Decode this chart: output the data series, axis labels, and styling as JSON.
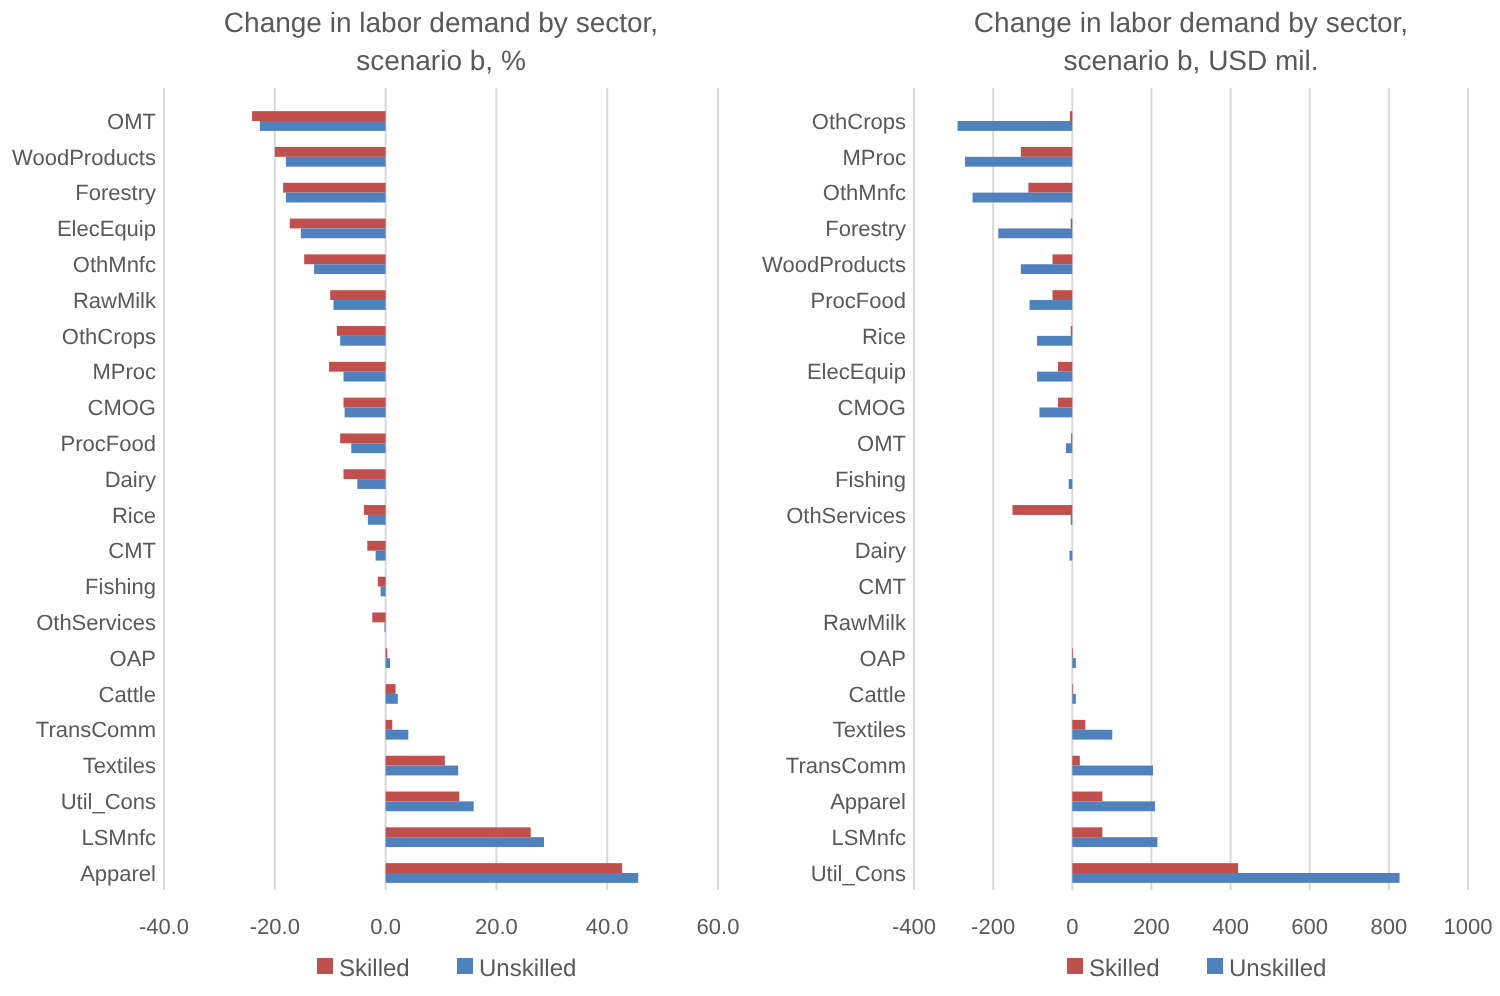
{
  "chart_data": [
    {
      "type": "bar",
      "orientation": "horizontal",
      "title": "Change in labor demand by sector, scenario b, %",
      "categories": [
        "OMT",
        "WoodProducts",
        "Forestry",
        "ElecEquip",
        "OthMnfc",
        "RawMilk",
        "OthCrops",
        "MProc",
        "CMOG",
        "ProcFood",
        "Dairy",
        "Rice",
        "CMT",
        "Fishing",
        "OthServices",
        "OAP",
        "Cattle",
        "TransComm",
        "Textiles",
        "Util_Cons",
        "LSMnfc",
        "Apparel"
      ],
      "series": [
        {
          "name": "Skilled",
          "color": "#c0504d",
          "values": [
            -24.1,
            -20,
            -18.5,
            -17.3,
            -14.7,
            -10,
            -8.8,
            -10.2,
            -7.6,
            -8.2,
            -7.6,
            -3.9,
            -3.3,
            -1.4,
            -2.4,
            0.3,
            1.8,
            1.2,
            10.7,
            13.3,
            26.2,
            42.7
          ]
        },
        {
          "name": "Unskilled",
          "color": "#4f81bd",
          "values": [
            -22.7,
            -18,
            -18,
            -15.3,
            -12.9,
            -9.4,
            -8.2,
            -7.6,
            -7.4,
            -6.2,
            -5.1,
            -3.2,
            -1.8,
            -0.9,
            -0.2,
            0.8,
            2.2,
            4.1,
            13.1,
            15.9,
            28.6,
            45.6
          ]
        }
      ],
      "xlim": [
        -40,
        60
      ],
      "xticks": [
        {
          "value": -40,
          "label": "-40.0"
        },
        {
          "value": -20,
          "label": "-20.0"
        },
        {
          "value": 0,
          "label": "0.0"
        },
        {
          "value": 20,
          "label": "20.0"
        },
        {
          "value": 40,
          "label": "40.0"
        },
        {
          "value": 60,
          "label": "60.0"
        }
      ],
      "grid": "x",
      "legend": "bottom"
    },
    {
      "type": "bar",
      "orientation": "horizontal",
      "title": "Change in labor demand by sector, scenario b, USD mil.",
      "categories": [
        "OthCrops",
        "MProc",
        "OthMnfc",
        "Forestry",
        "WoodProducts",
        "ProcFood",
        "Rice",
        "ElecEquip",
        "CMOG",
        "OMT",
        "Fishing",
        "OthServices",
        "Dairy",
        "CMT",
        "RawMilk",
        "OAP",
        "Cattle",
        "Textiles",
        "TransComm",
        "Apparel",
        "LSMnfc",
        "Util_Cons"
      ],
      "series": [
        {
          "name": "Skilled",
          "color": "#c0504d",
          "values": [
            -6,
            -130,
            -111,
            -4,
            -50,
            -50,
            -4,
            -36,
            -36,
            -3,
            null,
            -151,
            0,
            0,
            0,
            2,
            2,
            33,
            19,
            76,
            76,
            419
          ]
        },
        {
          "name": "Unskilled",
          "color": "#4f81bd",
          "values": [
            -290,
            -271,
            -252,
            -187,
            -130,
            -108,
            -89,
            -89,
            -83,
            -16,
            -9,
            -4,
            -7,
            0,
            0,
            9,
            9,
            101,
            204,
            209,
            215,
            827
          ]
        }
      ],
      "xlim": [
        -400,
        1000
      ],
      "xticks": [
        -400,
        -200,
        0,
        200,
        400,
        600,
        800,
        1000
      ],
      "grid": "x",
      "legend": "bottom"
    }
  ]
}
